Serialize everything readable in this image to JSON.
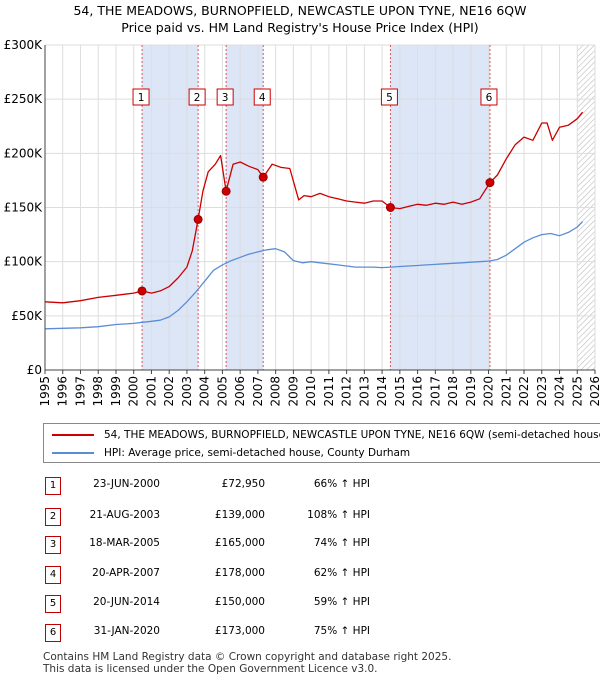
{
  "title_line1": "54, THE MEADOWS, BURNOPFIELD, NEWCASTLE UPON TYNE, NE16 6QW",
  "title_line2": "Price paid vs. HM Land Registry's House Price Index (HPI)",
  "colors": {
    "property": "#cc0000",
    "hpi": "#5b8dd6",
    "band": "#dce6f7",
    "grid": "#dddddd",
    "hatch": "#bbbbbb"
  },
  "legend": {
    "property_label": "54, THE MEADOWS, BURNOPFIELD, NEWCASTLE UPON TYNE, NE16 6QW (semi-detached house)",
    "hpi_label": "HPI: Average price, semi-detached house, County Durham"
  },
  "transactions": [
    {
      "num": "1",
      "date": "23-JUN-2000",
      "price": "£72,950",
      "hpi": "66% ↑ HPI"
    },
    {
      "num": "2",
      "date": "21-AUG-2003",
      "price": "£139,000",
      "hpi": "108% ↑ HPI"
    },
    {
      "num": "3",
      "date": "18-MAR-2005",
      "price": "£165,000",
      "hpi": "74% ↑ HPI"
    },
    {
      "num": "4",
      "date": "20-APR-2007",
      "price": "£178,000",
      "hpi": "62% ↑ HPI"
    },
    {
      "num": "5",
      "date": "20-JUN-2014",
      "price": "£150,000",
      "hpi": "59% ↑ HPI"
    },
    {
      "num": "6",
      "date": "31-JAN-2020",
      "price": "£173,000",
      "hpi": "75% ↑ HPI"
    }
  ],
  "footer_line1": "Contains HM Land Registry data © Crown copyright and database right 2025.",
  "footer_line2": "This data is licensed under the Open Government Licence v3.0.",
  "chart_data": {
    "type": "line",
    "title": "Price paid vs. HM Land Registry's House Price Index (HPI)",
    "x_range": [
      1995,
      2026
    ],
    "y_range": [
      0,
      300000
    ],
    "y_ticks": [
      {
        "v": 0,
        "label": "£0"
      },
      {
        "v": 50000,
        "label": "£50K"
      },
      {
        "v": 100000,
        "label": "£100K"
      },
      {
        "v": 150000,
        "label": "£150K"
      },
      {
        "v": 200000,
        "label": "£200K"
      },
      {
        "v": 250000,
        "label": "£250K"
      },
      {
        "v": 300000,
        "label": "£300K"
      }
    ],
    "x_ticks": [
      "1995",
      "1996",
      "1997",
      "1998",
      "1999",
      "2000",
      "2001",
      "2002",
      "2003",
      "2004",
      "2005",
      "2006",
      "2007",
      "2008",
      "2009",
      "2010",
      "2011",
      "2012",
      "2013",
      "2014",
      "2015",
      "2016",
      "2017",
      "2018",
      "2019",
      "2020",
      "2021",
      "2022",
      "2023",
      "2024",
      "2025",
      "2026"
    ],
    "shaded_ranges": [
      [
        2000.47,
        2003.63
      ],
      [
        2005.21,
        2007.3
      ],
      [
        2014.47,
        2020.08
      ]
    ],
    "future_hatch_from": 2025.0,
    "sale_markers": [
      {
        "label": "1",
        "x": 2000.47,
        "y": 72950
      },
      {
        "label": "2",
        "x": 2003.63,
        "y": 139000
      },
      {
        "label": "3",
        "x": 2005.21,
        "y": 165000
      },
      {
        "label": "4",
        "x": 2007.3,
        "y": 178000
      },
      {
        "label": "5",
        "x": 2014.47,
        "y": 150000
      },
      {
        "label": "6",
        "x": 2020.08,
        "y": 173000
      }
    ],
    "series": [
      {
        "name": "54, THE MEADOWS, BURNOPFIELD, NEWCASTLE UPON TYNE, NE16 6QW (semi-detached house)",
        "x": [
          1995.0,
          1996.0,
          1997.0,
          1998.0,
          1999.0,
          2000.0,
          2000.47,
          2001.0,
          2001.5,
          2002.0,
          2002.5,
          2003.0,
          2003.3,
          2003.63,
          2003.9,
          2004.2,
          2004.6,
          2004.9,
          2005.21,
          2005.6,
          2006.0,
          2006.5,
          2007.0,
          2007.3,
          2007.8,
          2008.3,
          2008.8,
          2009.3,
          2009.6,
          2010.0,
          2010.5,
          2011.0,
          2011.5,
          2012.0,
          2012.5,
          2013.0,
          2013.5,
          2014.0,
          2014.47,
          2015.0,
          2015.5,
          2016.0,
          2016.5,
          2017.0,
          2017.5,
          2018.0,
          2018.5,
          2019.0,
          2019.5,
          2020.08,
          2020.5,
          2021.0,
          2021.5,
          2022.0,
          2022.5,
          2023.0,
          2023.3,
          2023.6,
          2024.0,
          2024.5,
          2025.0,
          2025.3
        ],
        "values": [
          63000,
          62000,
          64000,
          67000,
          69000,
          71000,
          72950,
          71000,
          73000,
          77000,
          85000,
          95000,
          110000,
          139000,
          165000,
          183000,
          190000,
          198000,
          165000,
          190000,
          192000,
          188000,
          185000,
          178000,
          190000,
          187000,
          186000,
          157000,
          161000,
          160000,
          163000,
          160000,
          158000,
          156000,
          155000,
          154000,
          156000,
          156000,
          150000,
          149000,
          151000,
          153000,
          152000,
          154000,
          153000,
          155000,
          153000,
          155000,
          158000,
          173000,
          180000,
          195000,
          208000,
          215000,
          212000,
          228000,
          228000,
          212000,
          224000,
          226000,
          232000,
          238000
        ]
      },
      {
        "name": "HPI: Average price, semi-detached house, County Durham",
        "x": [
          1995.0,
          1996.0,
          1997.0,
          1998.0,
          1999.0,
          2000.0,
          2000.5,
          2001.0,
          2001.5,
          2002.0,
          2002.5,
          2003.0,
          2003.5,
          2004.0,
          2004.5,
          2005.0,
          2005.5,
          2006.0,
          2006.5,
          2007.0,
          2007.5,
          2008.0,
          2008.5,
          2009.0,
          2009.5,
          2010.0,
          2010.5,
          2011.0,
          2011.5,
          2012.0,
          2012.5,
          2013.0,
          2013.5,
          2014.0,
          2014.5,
          2015.0,
          2015.5,
          2016.0,
          2016.5,
          2017.0,
          2017.5,
          2018.0,
          2018.5,
          2019.0,
          2019.5,
          2020.0,
          2020.5,
          2021.0,
          2021.5,
          2022.0,
          2022.5,
          2023.0,
          2023.5,
          2024.0,
          2024.5,
          2025.0,
          2025.3
        ],
        "values": [
          38000,
          38500,
          39000,
          40000,
          42000,
          43000,
          44000,
          45000,
          46000,
          49000,
          55000,
          63000,
          72000,
          82000,
          92000,
          97000,
          101000,
          104000,
          107000,
          109000,
          111000,
          112000,
          109000,
          101000,
          99000,
          100000,
          99000,
          98000,
          97000,
          96000,
          95000,
          95000,
          95000,
          94500,
          95000,
          95500,
          96000,
          96500,
          97000,
          97500,
          98000,
          98500,
          99000,
          99500,
          100000,
          100500,
          102000,
          106000,
          112000,
          118000,
          122000,
          125000,
          126000,
          124000,
          127000,
          132000,
          137000
        ]
      }
    ]
  }
}
